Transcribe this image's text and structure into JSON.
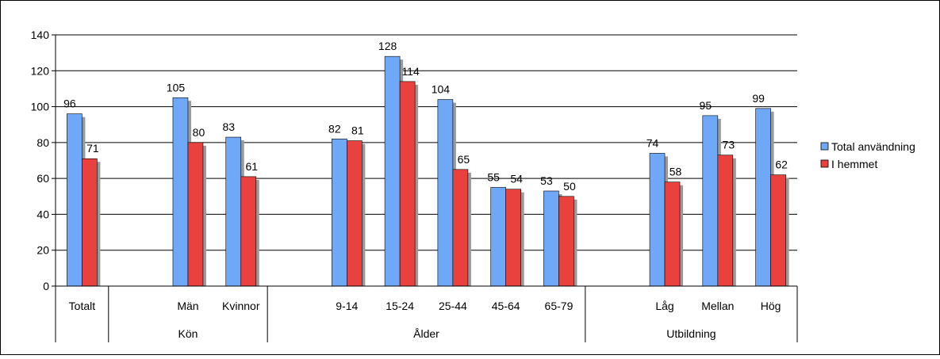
{
  "chart_data": {
    "type": "bar",
    "title": "",
    "xlabel": "",
    "ylabel": "",
    "ylim": [
      0,
      140
    ],
    "yticks": [
      0,
      20,
      40,
      60,
      80,
      100,
      120,
      140
    ],
    "grid": true,
    "legend_position": "right",
    "categories": [
      "Totalt",
      "",
      "Män",
      "Kvinnor",
      "",
      "9-14",
      "15-24",
      "25-44",
      "45-64",
      "65-79",
      "",
      "Låg",
      "Mellan",
      "Hög"
    ],
    "groups": [
      {
        "label": "",
        "start": 0,
        "end": 0
      },
      {
        "label": "Kön",
        "start": 1,
        "end": 3
      },
      {
        "label": "Ålder",
        "start": 4,
        "end": 9
      },
      {
        "label": "Utbildning",
        "start": 10,
        "end": 13
      }
    ],
    "series": [
      {
        "name": "Total användning",
        "color": "#6fa8f7",
        "values": [
          96,
          null,
          105,
          83,
          null,
          82,
          128,
          104,
          55,
          53,
          null,
          74,
          95,
          99
        ]
      },
      {
        "name": "I hemmet",
        "color": "#e8413e",
        "values": [
          71,
          null,
          80,
          61,
          null,
          81,
          114,
          65,
          54,
          50,
          null,
          58,
          73,
          62
        ]
      }
    ]
  }
}
